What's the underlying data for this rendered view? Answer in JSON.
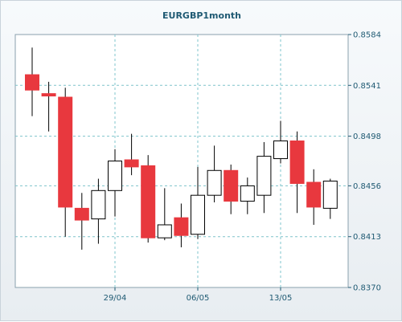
{
  "chart_data": {
    "type": "candlestick",
    "title": "EURGBP1month",
    "ylim": [
      0.837,
      0.8584
    ],
    "y_ticks": [
      "0.8584",
      "0.8541",
      "0.8498",
      "0.8456",
      "0.8413",
      "0.8370"
    ],
    "x_ticks": [
      {
        "label": "29/04",
        "index": 5
      },
      {
        "label": "06/05",
        "index": 10
      },
      {
        "label": "13/05",
        "index": 15
      }
    ],
    "grid": true,
    "colors": {
      "up": "#ffffff",
      "down": "#e8383e",
      "outline": "#000000",
      "grid": "#7fc4cc"
    },
    "candles": [
      {
        "open": 0.855,
        "high": 0.8573,
        "low": 0.8515,
        "close": 0.8537
      },
      {
        "open": 0.8534,
        "high": 0.8544,
        "low": 0.8502,
        "close": 0.8532
      },
      {
        "open": 0.8531,
        "high": 0.8539,
        "low": 0.8413,
        "close": 0.8438
      },
      {
        "open": 0.8437,
        "high": 0.845,
        "low": 0.8402,
        "close": 0.8427
      },
      {
        "open": 0.8428,
        "high": 0.8462,
        "low": 0.8407,
        "close": 0.8452
      },
      {
        "open": 0.8452,
        "high": 0.8487,
        "low": 0.843,
        "close": 0.8477
      },
      {
        "open": 0.8478,
        "high": 0.85,
        "low": 0.8465,
        "close": 0.8472
      },
      {
        "open": 0.8473,
        "high": 0.8482,
        "low": 0.8408,
        "close": 0.8412
      },
      {
        "open": 0.8412,
        "high": 0.8454,
        "low": 0.841,
        "close": 0.8423
      },
      {
        "open": 0.8429,
        "high": 0.8441,
        "low": 0.8404,
        "close": 0.8414
      },
      {
        "open": 0.8415,
        "high": 0.8472,
        "low": 0.8411,
        "close": 0.8448
      },
      {
        "open": 0.8448,
        "high": 0.849,
        "low": 0.8442,
        "close": 0.8469
      },
      {
        "open": 0.8469,
        "high": 0.8474,
        "low": 0.8432,
        "close": 0.8443
      },
      {
        "open": 0.8443,
        "high": 0.8463,
        "low": 0.8432,
        "close": 0.8456
      },
      {
        "open": 0.8448,
        "high": 0.8493,
        "low": 0.8433,
        "close": 0.8481
      },
      {
        "open": 0.8479,
        "high": 0.8511,
        "low": 0.8475,
        "close": 0.8494
      },
      {
        "open": 0.8494,
        "high": 0.8502,
        "low": 0.8433,
        "close": 0.8458
      },
      {
        "open": 0.8459,
        "high": 0.847,
        "low": 0.8423,
        "close": 0.8438
      },
      {
        "open": 0.8437,
        "high": 0.8462,
        "low": 0.8428,
        "close": 0.846
      }
    ]
  }
}
